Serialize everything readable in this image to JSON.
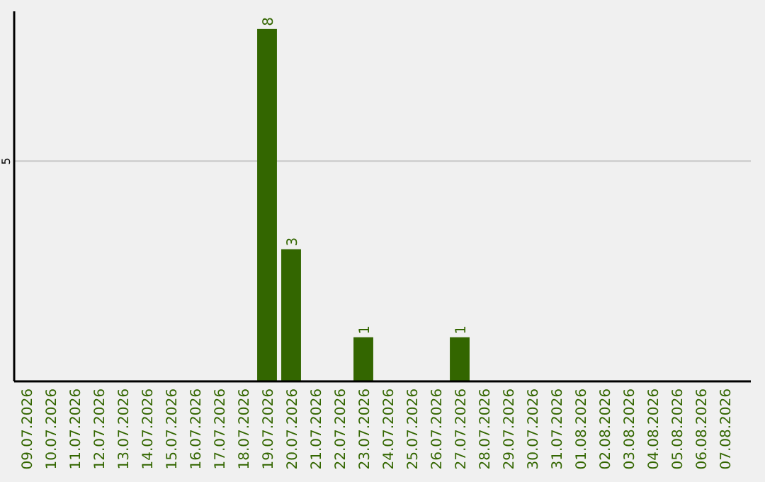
{
  "chart_data": {
    "type": "bar",
    "categories": [
      "09.07.2026",
      "10.07.2026",
      "11.07.2026",
      "12.07.2026",
      "13.07.2026",
      "14.07.2026",
      "15.07.2026",
      "16.07.2026",
      "17.07.2026",
      "18.07.2026",
      "19.07.2026",
      "20.07.2026",
      "21.07.2026",
      "22.07.2026",
      "23.07.2026",
      "24.07.2026",
      "25.07.2026",
      "26.07.2026",
      "27.07.2026",
      "28.07.2026",
      "29.07.2026",
      "30.07.2026",
      "31.07.2026",
      "01.08.2026",
      "02.08.2026",
      "03.08.2026",
      "04.08.2026",
      "05.08.2026",
      "06.08.2026",
      "07.08.2026"
    ],
    "values": [
      0,
      0,
      0,
      0,
      0,
      0,
      0,
      0,
      0,
      0,
      8,
      3,
      0,
      0,
      1,
      0,
      0,
      0,
      1,
      0,
      0,
      0,
      0,
      0,
      0,
      0,
      0,
      0,
      0,
      0
    ],
    "value_labels": [
      null,
      null,
      null,
      null,
      null,
      null,
      null,
      null,
      null,
      null,
      "8",
      "3",
      null,
      null,
      "1",
      null,
      null,
      null,
      "1",
      null,
      null,
      null,
      null,
      null,
      null,
      null,
      null,
      null,
      null,
      null
    ],
    "color": "#336600",
    "ylim": [
      0,
      8.4
    ],
    "yticks": [
      5
    ],
    "grid": "y"
  }
}
